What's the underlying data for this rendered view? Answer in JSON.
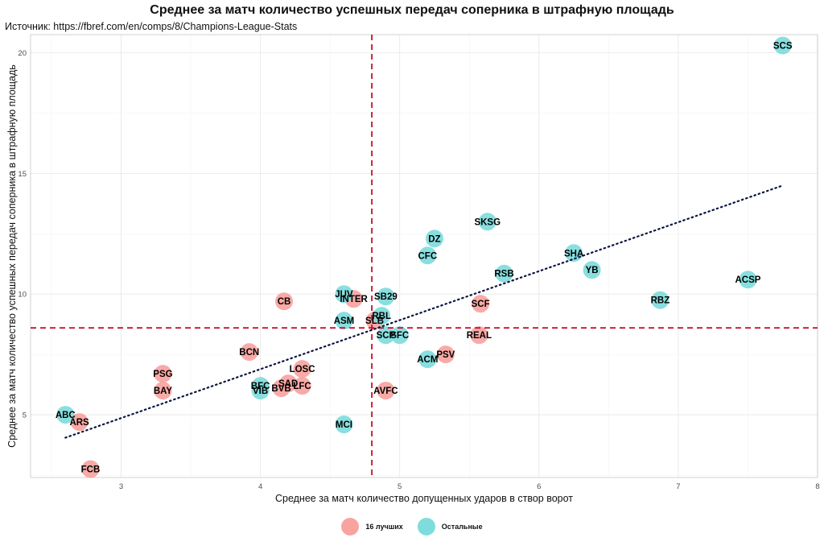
{
  "chart_data": {
    "type": "scatter",
    "title": "Среднее за матч количество успешных передач соперника в штрафную площадь",
    "subtitle": "Источник: https://fbref.com/en/comps/8/Champions-League-Stats",
    "xlabel": "Среднее за матч количество допущенных ударов в створ ворот",
    "ylabel": "Среднее за матч количество успешных передач соперника в штрафную площадь",
    "xlim": [
      2.35,
      8.0
    ],
    "ylim": [
      2.4,
      20.75
    ],
    "xticks": [
      "3",
      "4",
      "5",
      "6",
      "7",
      "8"
    ],
    "yticks": [
      "5",
      "10",
      "15",
      "20"
    ],
    "grid": true,
    "legend_position": "bottom",
    "vline_x": 4.8,
    "hline_y": 8.6,
    "trendline": {
      "x": [
        2.6,
        7.75
      ],
      "y": [
        4.05,
        14.5
      ]
    },
    "series": [
      {
        "name": "16 лучших",
        "color": "#f8a3a0",
        "points": [
          {
            "label": "ARS",
            "x": 2.7,
            "y": 4.7
          },
          {
            "label": "FCB",
            "x": 2.78,
            "y": 2.75
          },
          {
            "label": "PSG",
            "x": 3.3,
            "y": 6.7
          },
          {
            "label": "BAY",
            "x": 3.3,
            "y": 6.0
          },
          {
            "label": "BCN",
            "x": 3.92,
            "y": 7.6
          },
          {
            "label": "CB",
            "x": 4.17,
            "y": 9.7
          },
          {
            "label": "LOSC",
            "x": 4.3,
            "y": 6.9
          },
          {
            "label": "SAD",
            "x": 4.2,
            "y": 6.3
          },
          {
            "label": "BVB",
            "x": 4.15,
            "y": 6.1
          },
          {
            "label": "LFC",
            "x": 4.3,
            "y": 6.2
          },
          {
            "label": "INTER",
            "x": 4.67,
            "y": 9.8
          },
          {
            "label": "SLB",
            "x": 4.82,
            "y": 8.9
          },
          {
            "label": "AVFC",
            "x": 4.9,
            "y": 6.0
          },
          {
            "label": "PSV",
            "x": 5.33,
            "y": 7.5
          },
          {
            "label": "SCF",
            "x": 5.58,
            "y": 9.6
          },
          {
            "label": "REAL",
            "x": 5.57,
            "y": 8.3
          }
        ]
      },
      {
        "name": "Остальные",
        "color": "#7fdcdc",
        "points": [
          {
            "label": "ABC",
            "x": 2.6,
            "y": 5.0
          },
          {
            "label": "BFC",
            "x": 4.0,
            "y": 6.2
          },
          {
            "label": "VIB",
            "x": 4.0,
            "y": 6.0
          },
          {
            "label": "ASM",
            "x": 4.6,
            "y": 8.9
          },
          {
            "label": "JUV",
            "x": 4.6,
            "y": 10.0
          },
          {
            "label": "MCI",
            "x": 4.6,
            "y": 4.6
          },
          {
            "label": "RBL",
            "x": 4.87,
            "y": 9.1
          },
          {
            "label": "SB29",
            "x": 4.9,
            "y": 9.9
          },
          {
            "label": "SCP",
            "x": 4.9,
            "y": 8.3
          },
          {
            "label": "SFC",
            "x": 5.0,
            "y": 8.3
          },
          {
            "label": "ACM",
            "x": 5.2,
            "y": 7.3
          },
          {
            "label": "CFC",
            "x": 5.2,
            "y": 11.6
          },
          {
            "label": "DZ",
            "x": 5.25,
            "y": 12.3
          },
          {
            "label": "SKSG",
            "x": 5.63,
            "y": 13.0
          },
          {
            "label": "RSB",
            "x": 5.75,
            "y": 10.85
          },
          {
            "label": "SHA",
            "x": 6.25,
            "y": 11.7
          },
          {
            "label": "YB",
            "x": 6.38,
            "y": 11.0
          },
          {
            "label": "RBZ",
            "x": 6.87,
            "y": 9.75
          },
          {
            "label": "ACSP",
            "x": 7.5,
            "y": 10.6
          },
          {
            "label": "SCS",
            "x": 7.75,
            "y": 20.3
          }
        ]
      }
    ]
  }
}
